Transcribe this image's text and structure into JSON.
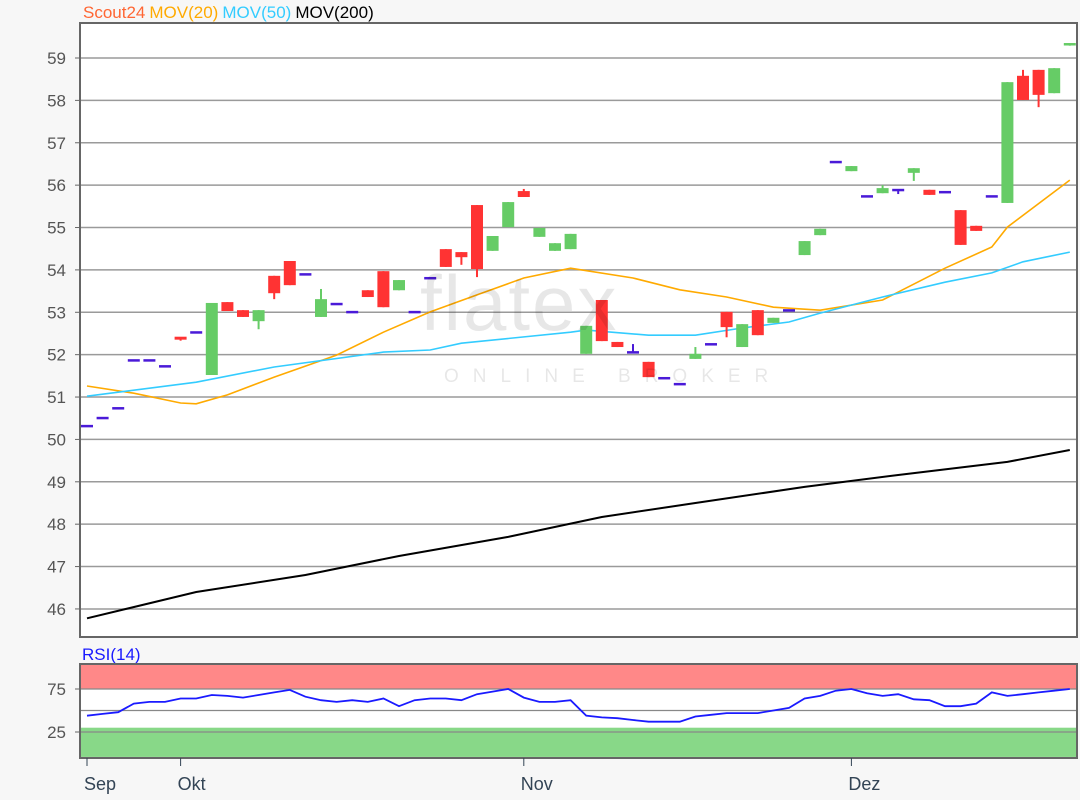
{
  "chart_data": [
    {
      "type": "candlestick",
      "legend": [
        {
          "label": "Scout24",
          "color": "#ff6633"
        },
        {
          "label": "MOV(20)",
          "color": "#ffaa00"
        },
        {
          "label": "MOV(50)",
          "color": "#33ccff"
        },
        {
          "label": "MOV(200)",
          "color": "#000000"
        }
      ],
      "ylim": [
        45.6,
        59.8
      ],
      "yticks": [
        46,
        47,
        48,
        49,
        50,
        51,
        52,
        53,
        54,
        55,
        56,
        57,
        58,
        59
      ],
      "grid": true,
      "x_axis": "trading day index",
      "xticks": [
        {
          "i": 0,
          "label": "Sep"
        },
        {
          "i": 6,
          "label": "Okt"
        },
        {
          "i": 28,
          "label": "Nov"
        },
        {
          "i": 49,
          "label": "Dez"
        }
      ],
      "colors": {
        "up": "#66cc66",
        "down": "#ff3333",
        "flat": "#4a1ad8"
      },
      "ohlc": [
        [
          50.32,
          50.32,
          50.32,
          50.32
        ],
        [
          50.51,
          50.51,
          50.51,
          50.51
        ],
        [
          50.74,
          50.74,
          50.74,
          50.74
        ],
        [
          51.87,
          51.87,
          51.87,
          51.87
        ],
        [
          51.87,
          51.87,
          51.87,
          51.87
        ],
        [
          51.73,
          51.73,
          51.73,
          51.73
        ],
        [
          52.4,
          52.4,
          52.33,
          52.33
        ],
        [
          52.53,
          52.53,
          52.53,
          52.53
        ],
        [
          51.52,
          53.22,
          51.52,
          53.22
        ],
        [
          53.24,
          53.24,
          53.03,
          53.03
        ],
        [
          53.05,
          53.05,
          52.89,
          52.89
        ],
        [
          52.79,
          53.05,
          52.6,
          53.05
        ],
        [
          53.86,
          53.86,
          53.31,
          53.45
        ],
        [
          54.21,
          54.21,
          53.64,
          53.64
        ],
        [
          53.9,
          53.9,
          53.9,
          53.9
        ],
        [
          52.89,
          53.55,
          52.89,
          53.31
        ],
        [
          53.2,
          53.2,
          53.2,
          53.2
        ],
        [
          53.01,
          53.01,
          53.01,
          53.01
        ],
        [
          53.52,
          53.52,
          53.36,
          53.36
        ],
        [
          53.97,
          53.97,
          53.12,
          53.12
        ],
        [
          53.52,
          53.76,
          53.52,
          53.76
        ],
        [
          53.01,
          53.01,
          53.01,
          53.01
        ],
        [
          53.81,
          53.81,
          53.81,
          53.81
        ],
        [
          54.49,
          54.49,
          54.07,
          54.07
        ],
        [
          54.42,
          54.42,
          54.12,
          54.3
        ],
        [
          55.53,
          55.53,
          53.83,
          54.02
        ],
        [
          54.45,
          54.8,
          54.45,
          54.8
        ],
        [
          55.01,
          55.6,
          55.01,
          55.6
        ],
        [
          55.86,
          55.91,
          55.72,
          55.72
        ],
        [
          54.78,
          54.99,
          54.78,
          54.99
        ],
        [
          54.45,
          54.63,
          54.45,
          54.63
        ],
        [
          54.49,
          54.85,
          54.49,
          54.85
        ],
        [
          52.02,
          52.68,
          52.02,
          52.68
        ],
        [
          53.29,
          53.29,
          52.32,
          52.32
        ],
        [
          52.3,
          52.3,
          52.18,
          52.18
        ],
        [
          52.06,
          52.25,
          52.06,
          52.06
        ],
        [
          51.83,
          51.83,
          51.47,
          51.47
        ],
        [
          51.45,
          51.45,
          51.45,
          51.45
        ],
        [
          51.31,
          51.31,
          51.31,
          51.31
        ],
        [
          51.9,
          52.18,
          51.9,
          52.02
        ],
        [
          52.25,
          52.25,
          52.25,
          52.25
        ],
        [
          53.01,
          53.01,
          52.41,
          52.65
        ],
        [
          52.18,
          52.72,
          52.18,
          52.72
        ],
        [
          53.05,
          53.05,
          52.46,
          52.46
        ],
        [
          52.75,
          52.87,
          52.75,
          52.87
        ],
        [
          53.05,
          53.05,
          53.05,
          53.05
        ],
        [
          54.35,
          54.68,
          54.35,
          54.68
        ],
        [
          54.82,
          54.97,
          54.82,
          54.97
        ],
        [
          56.55,
          56.55,
          56.55,
          56.55
        ],
        [
          56.33,
          56.45,
          56.33,
          56.45
        ],
        [
          55.74,
          55.74,
          55.74,
          55.74
        ],
        [
          55.81,
          56.0,
          55.81,
          55.93
        ],
        [
          55.89,
          55.89,
          55.79,
          55.89
        ],
        [
          56.29,
          56.4,
          56.1,
          56.4
        ],
        [
          55.89,
          55.89,
          55.77,
          55.77
        ],
        [
          55.84,
          55.84,
          55.84,
          55.84
        ],
        [
          55.41,
          55.41,
          54.59,
          54.59
        ],
        [
          55.04,
          55.04,
          54.92,
          54.92
        ],
        [
          55.74,
          55.74,
          55.74,
          55.74
        ],
        [
          55.58,
          58.43,
          55.58,
          58.43
        ],
        [
          58.58,
          58.72,
          58.01,
          58.01
        ],
        [
          58.72,
          58.72,
          57.84,
          58.13
        ],
        [
          58.17,
          58.76,
          58.17,
          58.76
        ],
        [
          59.29,
          59.33,
          59.29,
          59.33
        ]
      ],
      "moving_averages": [
        {
          "name": "MOV(20)",
          "color": "#ffaa00",
          "points": [
            [
              0,
              51.26
            ],
            [
              3,
              51.09
            ],
            [
              6,
              50.86
            ],
            [
              7,
              50.84
            ],
            [
              9,
              51.05
            ],
            [
              12,
              51.47
            ],
            [
              16,
              51.99
            ],
            [
              19,
              52.53
            ],
            [
              22,
              53.01
            ],
            [
              25,
              53.41
            ],
            [
              28,
              53.81
            ],
            [
              31,
              54.04
            ],
            [
              35,
              53.81
            ],
            [
              38,
              53.53
            ],
            [
              41,
              53.36
            ],
            [
              44,
              53.12
            ],
            [
              47,
              53.05
            ],
            [
              51,
              53.29
            ],
            [
              55,
              54.04
            ],
            [
              58,
              54.54
            ],
            [
              59,
              55.01
            ],
            [
              63,
              56.12
            ]
          ]
        },
        {
          "name": "MOV(50)",
          "color": "#33ccff",
          "points": [
            [
              0,
              51.02
            ],
            [
              7,
              51.35
            ],
            [
              12,
              51.71
            ],
            [
              19,
              52.06
            ],
            [
              22,
              52.11
            ],
            [
              24,
              52.27
            ],
            [
              31,
              52.53
            ],
            [
              32,
              52.58
            ],
            [
              36,
              52.46
            ],
            [
              39,
              52.46
            ],
            [
              42,
              52.63
            ],
            [
              45,
              52.77
            ],
            [
              47,
              52.98
            ],
            [
              51,
              53.36
            ],
            [
              55,
              53.71
            ],
            [
              58,
              53.93
            ],
            [
              60,
              54.19
            ],
            [
              63,
              54.42
            ]
          ]
        },
        {
          "name": "MOV(200)",
          "color": "#000000",
          "points": [
            [
              0,
              45.78
            ],
            [
              7,
              46.4
            ],
            [
              14,
              46.8
            ],
            [
              20,
              47.25
            ],
            [
              27,
              47.7
            ],
            [
              33,
              48.17
            ],
            [
              39,
              48.5
            ],
            [
              46,
              48.88
            ],
            [
              52,
              49.16
            ],
            [
              59,
              49.47
            ],
            [
              63,
              49.75
            ]
          ]
        }
      ]
    },
    {
      "type": "line",
      "title": "RSI(14)",
      "ylim": [
        -4,
        103
      ],
      "yticks": [
        25,
        75
      ],
      "bands": [
        {
          "from": 75,
          "to": 103,
          "color": "#ff8888"
        },
        {
          "from": -4,
          "to": 30,
          "color": "#88d888"
        }
      ],
      "line_color": "#1a1aff",
      "values": [
        44,
        46,
        48,
        58,
        60,
        60,
        64,
        64,
        68,
        67,
        65,
        68,
        71,
        74,
        66,
        62,
        60,
        62,
        60,
        64,
        55,
        62,
        64,
        64,
        62,
        69,
        72,
        75,
        65,
        60,
        60,
        62,
        44,
        42,
        41,
        39,
        37,
        37,
        37,
        43,
        45,
        47,
        47,
        47,
        50,
        53,
        64,
        67,
        73,
        75,
        70,
        67,
        69,
        63,
        62,
        55,
        55,
        58,
        71,
        67,
        69,
        71,
        73,
        75
      ]
    }
  ],
  "watermark": {
    "brand": "flatex",
    "tagline": "ONLINE BROKER"
  }
}
